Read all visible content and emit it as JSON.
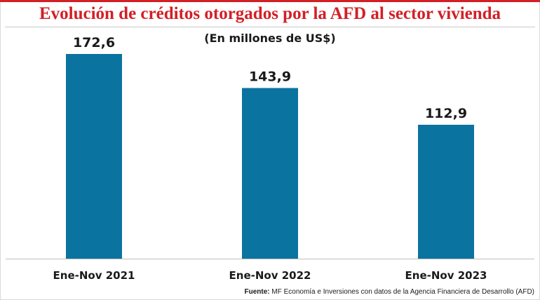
{
  "header": {
    "title": "Evolución de créditos otorgados por la AFD al sector vivienda",
    "subtitle": "(En millones de US$)"
  },
  "footer": {
    "source_label": "Fuente:",
    "source_text": "MF Economía e Inversiones con datos de la Agencia Financiera de Desarrollo (AFD)"
  },
  "colors": {
    "title": "#d31f26",
    "bar": "#0a73a0"
  },
  "chart_data": {
    "type": "bar",
    "title": "Evolución de créditos otorgados por la AFD al sector vivienda",
    "subtitle": "(En millones de US$)",
    "categories": [
      "Ene-Nov 2021",
      "Ene-Nov 2022",
      "Ene-Nov 2023"
    ],
    "values": [
      172.6,
      143.9,
      112.9
    ],
    "value_labels": [
      "172,6",
      "143,9",
      "112,9"
    ],
    "xlabel": "",
    "ylabel": "",
    "ylim": [
      0,
      172.6
    ],
    "grid": false,
    "legend": "none"
  }
}
